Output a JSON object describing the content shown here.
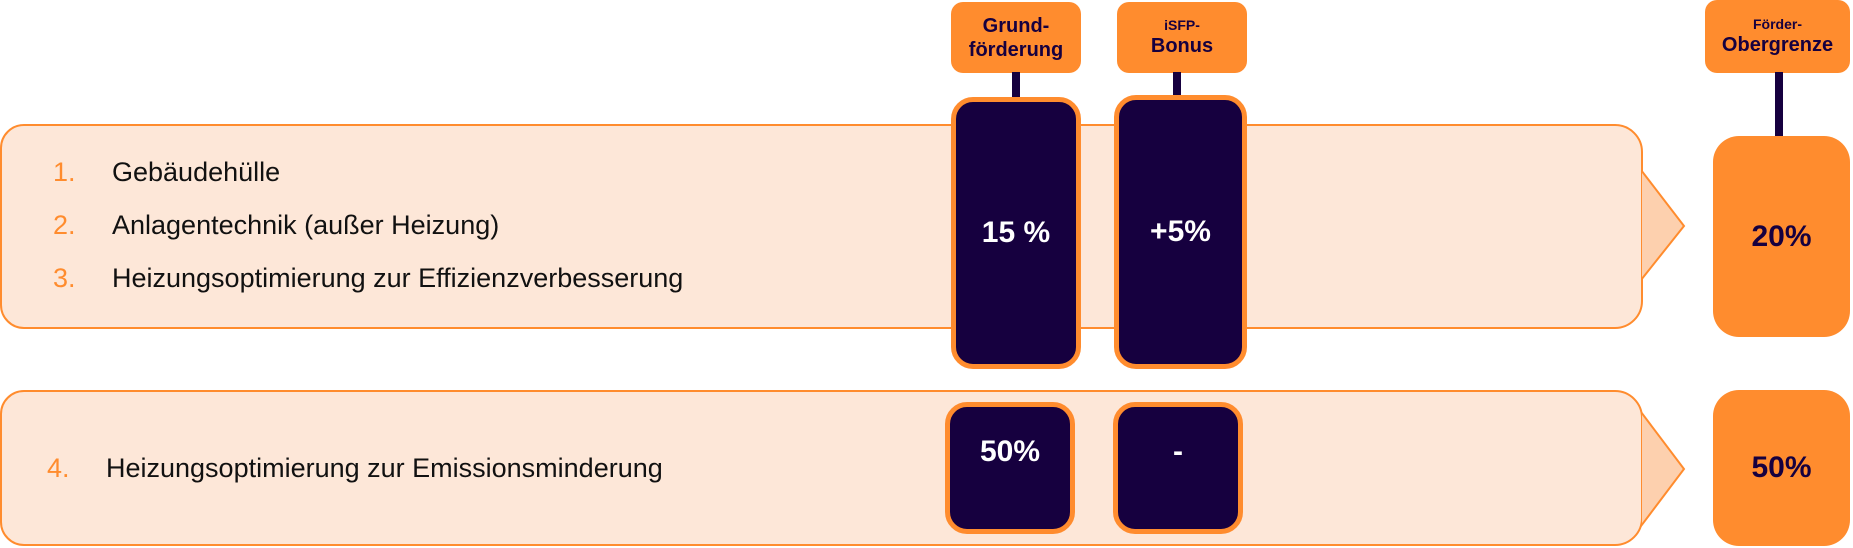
{
  "headers": {
    "grund": [
      "Grund-",
      "förderung"
    ],
    "isfp": [
      "iSFP-",
      "Bonus"
    ],
    "obergrenze": [
      "Förder-",
      "Obergrenze"
    ]
  },
  "rows": [
    {
      "items": [
        {
          "num": "1.",
          "text": "Gebäudehülle"
        },
        {
          "num": "2.",
          "text": "Anlagentechnik (außer Heizung)"
        },
        {
          "num": "3.",
          "text": "Heizungsoptimierung zur Effizienzverbesserung"
        }
      ],
      "grund": "15 %",
      "bonus": "+5%",
      "max": "20%"
    },
    {
      "items": [
        {
          "num": "4.",
          "text": "Heizungsoptimierung zur Emissionsminderung"
        }
      ],
      "grund": "50%",
      "bonus": "-",
      "max": "50%"
    }
  ],
  "colors": {
    "orange": "#FF8C2E",
    "dark": "#16003F",
    "panel": "#FDE7D8"
  }
}
